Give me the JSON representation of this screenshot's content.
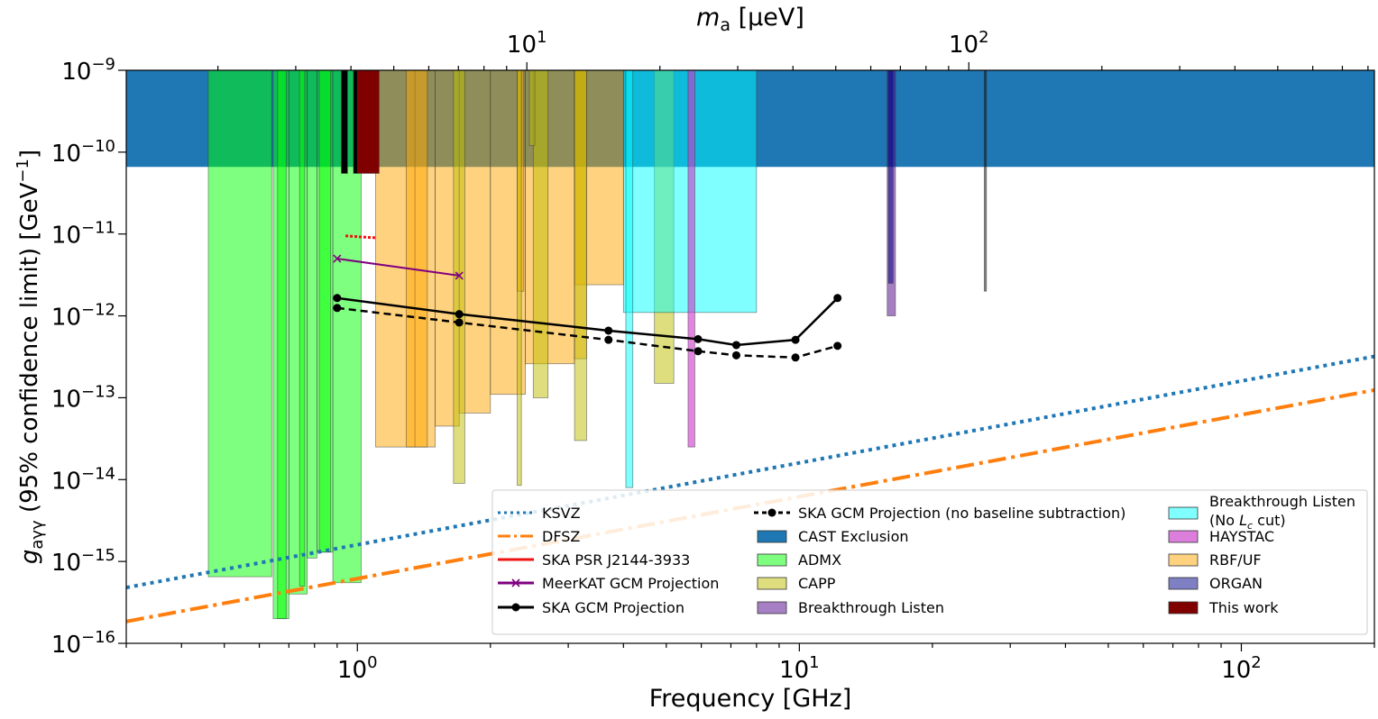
{
  "chart_data": {
    "type": "area",
    "xlabel": "Frequency [GHz]",
    "ylabel_main": "g",
    "ylabel_sub": "aγγ",
    "ylabel_rest": " (95% confidence limit) [GeV",
    "ylabel_exp": "−1",
    "ylabel_end": "]",
    "top_xlabel_base": "m",
    "top_xlabel_sub": "a",
    "top_xlabel_unit": " [μeV]",
    "xscale": "log",
    "yscale": "log",
    "xlim": [
      0.3,
      200
    ],
    "ylim": [
      1e-16,
      1e-09
    ],
    "x_ticks": [
      {
        "value": 1,
        "base": "10",
        "exp": "0"
      },
      {
        "value": 10,
        "base": "10",
        "exp": "1"
      },
      {
        "value": 100,
        "base": "10",
        "exp": "2"
      }
    ],
    "y_ticks": [
      {
        "value": 1e-09,
        "base": "10",
        "exp": "−9"
      },
      {
        "value": 1e-10,
        "base": "10",
        "exp": "−10"
      },
      {
        "value": 1e-11,
        "base": "10",
        "exp": "−11"
      },
      {
        "value": 1e-12,
        "base": "10",
        "exp": "−12"
      },
      {
        "value": 1e-13,
        "base": "10",
        "exp": "−13"
      },
      {
        "value": 1e-14,
        "base": "10",
        "exp": "−14"
      },
      {
        "value": 1e-15,
        "base": "10",
        "exp": "−15"
      },
      {
        "value": 1e-16,
        "base": "10",
        "exp": "−16"
      }
    ],
    "top_x_ticks": [
      {
        "value": 10,
        "base": "10",
        "exp": "1"
      },
      {
        "value": 100,
        "base": "10",
        "exp": "2"
      }
    ],
    "ueV_per_GHz": 4.1357,
    "lines": [
      {
        "name": "KSVZ",
        "x": [
          0.3,
          200
        ],
        "y": [
          4.8e-16,
          3.2e-13
        ],
        "color": "#1f77b4",
        "dash": "4,5",
        "width": 4
      },
      {
        "name": "DFSZ",
        "x": [
          0.3,
          200
        ],
        "y": [
          1.85e-16,
          1.24e-13
        ],
        "color": "#ff7f0e",
        "dash": "20,6,4,6",
        "width": 4
      },
      {
        "name": "SKA PSR J2144-3933",
        "x": [
          0.94,
          1.02,
          1.1
        ],
        "y": [
          9.5e-12,
          9.2e-12,
          9e-12
        ],
        "color": "#ee1111",
        "dash": "3,2",
        "width": 3
      },
      {
        "name": "MeerKAT GCM Projection",
        "x": [
          0.9,
          1.7
        ],
        "y": [
          5e-12,
          3.1e-12
        ],
        "color": "#800080",
        "marker": "x",
        "width": 2
      },
      {
        "name": "SKA GCM Projection",
        "x": [
          0.9,
          1.7,
          3.7,
          5.9,
          7.2,
          9.8,
          12.2
        ],
        "y": [
          1.65e-12,
          1.05e-12,
          6.6e-13,
          5.2e-13,
          4.4e-13,
          5.1e-13,
          1.65e-12
        ],
        "color": "#000000",
        "marker": "o",
        "width": 2.5
      },
      {
        "name": "SKA GCM Projection (no baseline subtraction)",
        "x": [
          0.9,
          1.7,
          3.7,
          5.9,
          7.2,
          9.8,
          12.2
        ],
        "y": [
          1.25e-12,
          8.3e-13,
          5.1e-13,
          3.7e-13,
          3.3e-13,
          3.1e-13,
          4.3e-13
        ],
        "color": "#000000",
        "marker": "o",
        "dash": "8,5",
        "width": 2.5
      }
    ],
    "regions": [
      {
        "name": "CAST Exclusion",
        "color": "#1f77b4",
        "opacity": 1,
        "x": [
          0.3,
          200
        ],
        "floor": 6.6e-11
      },
      {
        "name": "ADMX",
        "color": "#00ff00",
        "opacity": 0.5,
        "x": [
          0.46,
          0.64
        ],
        "floor": 6.5e-16
      },
      {
        "name": "ADMX",
        "color": "#00ff00",
        "opacity": 0.5,
        "x": [
          0.645,
          0.7
        ],
        "floor": 2e-16
      },
      {
        "name": "ADMX",
        "color": "#00ff00",
        "opacity": 0.5,
        "x": [
          0.7,
          0.77
        ],
        "floor": 4e-16
      },
      {
        "name": "ADMX",
        "color": "#00ff00",
        "opacity": 0.5,
        "x": [
          0.77,
          0.81
        ],
        "floor": 1.1e-15
      },
      {
        "name": "ADMX",
        "color": "#00ff00",
        "opacity": 0.5,
        "x": [
          0.81,
          0.88
        ],
        "floor": 1.3e-15
      },
      {
        "name": "ADMX",
        "color": "#00ff00",
        "opacity": 0.5,
        "x": [
          0.88,
          1.02
        ],
        "floor": 5.5e-16
      },
      {
        "name": "ADMX",
        "color": "#00ff00",
        "opacity": 0.5,
        "x": [
          0.66,
          0.69
        ],
        "floor": 2e-16
      },
      {
        "name": "ADMX",
        "color": "#00ff00",
        "opacity": 0.5,
        "x": [
          0.74,
          0.76
        ],
        "floor": 5e-16
      },
      {
        "name": "ADMX",
        "color": "#00ff00",
        "opacity": 0.5,
        "x": [
          0.82,
          0.87
        ],
        "floor": 1.3e-15
      },
      {
        "name": "RBF/UF",
        "color": "#ffa500",
        "opacity": 0.5,
        "x": [
          1.1,
          1.35
        ],
        "floor": 2.5e-14
      },
      {
        "name": "RBF/UF",
        "color": "#ffa500",
        "opacity": 0.5,
        "x": [
          1.35,
          1.5
        ],
        "floor": 2.5e-14
      },
      {
        "name": "RBF/UF",
        "color": "#ffa500",
        "opacity": 0.5,
        "x": [
          1.5,
          1.7
        ],
        "floor": 4.5e-14
      },
      {
        "name": "RBF/UF",
        "color": "#ffa500",
        "opacity": 0.5,
        "x": [
          1.7,
          2.0
        ],
        "floor": 6.5e-14
      },
      {
        "name": "RBF/UF",
        "color": "#ffa500",
        "opacity": 0.5,
        "x": [
          2.0,
          2.4
        ],
        "floor": 1.1e-13
      },
      {
        "name": "RBF/UF",
        "color": "#ffa500",
        "opacity": 0.5,
        "x": [
          2.4,
          3.1
        ],
        "floor": 2.6e-13
      },
      {
        "name": "RBF/UF",
        "color": "#ffa500",
        "opacity": 0.5,
        "x": [
          3.1,
          4.0
        ],
        "floor": 2.4e-12
      },
      {
        "name": "RBF/UF",
        "color": "#ffa500",
        "opacity": 0.5,
        "x": [
          1.29,
          1.44
        ],
        "floor": 2.5e-14
      },
      {
        "name": "RBF/UF",
        "color": "#ffa500",
        "opacity": 0.5,
        "x": [
          2.3,
          2.38
        ],
        "floor": 2e-12
      },
      {
        "name": "RBF/UF",
        "color": "#ffa500",
        "opacity": 0.5,
        "x": [
          3.1,
          3.3
        ],
        "floor": 3e-13
      },
      {
        "name": "CAPP",
        "color": "#bdbd00",
        "opacity": 0.5,
        "x": [
          1.65,
          1.75
        ],
        "floor": 9e-15
      },
      {
        "name": "CAPP",
        "color": "#bdbd00",
        "opacity": 0.5,
        "x": [
          2.3,
          2.35
        ],
        "floor": 8.5e-15
      },
      {
        "name": "CAPP",
        "color": "#bdbd00",
        "opacity": 0.5,
        "x": [
          2.5,
          2.7
        ],
        "floor": 1e-13
      },
      {
        "name": "CAPP",
        "color": "#bdbd00",
        "opacity": 0.5,
        "x": [
          2.45,
          2.52
        ],
        "floor": 1.2e-10
      },
      {
        "name": "CAPP",
        "color": "#bdbd00",
        "opacity": 0.5,
        "x": [
          3.1,
          3.3
        ],
        "floor": 3e-14
      },
      {
        "name": "CAPP",
        "color": "#bdbd00",
        "opacity": 0.5,
        "x": [
          4.7,
          5.2
        ],
        "floor": 1.5e-13
      },
      {
        "name": "Breakthrough Listen (No Lc cut)",
        "color": "#00ffff",
        "opacity": 0.5,
        "x": [
          4.0,
          8.0
        ],
        "floor": 1.1e-12
      },
      {
        "name": "Breakthrough Listen (No Lc cut)",
        "color": "#00ffff",
        "opacity": 0.5,
        "x": [
          4.05,
          4.2
        ],
        "floor": 8e-15
      },
      {
        "name": "HAYSTAC",
        "color": "#cc33cc",
        "opacity": 0.6,
        "x": [
          5.6,
          5.8
        ],
        "floor": 2.5e-14
      },
      {
        "name": "Breakthrough Listen",
        "color": "#4b0082",
        "opacity": 0.5,
        "x": [
          15.8,
          16.5
        ],
        "floor": 1e-12
      },
      {
        "name": "ORGAN",
        "color": "#00008b",
        "opacity": 0.5,
        "x": [
          15.9,
          16.3
        ],
        "floor": 2.5e-12
      },
      {
        "name": "This work",
        "color": "#800000",
        "opacity": 1,
        "x": [
          1.0,
          1.12
        ],
        "floor": 5.5e-11
      },
      {
        "name": "This work",
        "color": "#000000",
        "opacity": 1,
        "x": [
          0.92,
          0.95
        ],
        "floor": 5.5e-11
      },
      {
        "name": "This work",
        "color": "#000000",
        "opacity": 1,
        "x": [
          0.98,
          1.0
        ],
        "floor": 5.5e-11
      },
      {
        "name": "Breakthrough Listen",
        "color": "#000000",
        "opacity": 0.5,
        "x": [
          26.2,
          26.5
        ],
        "floor": 2e-12
      }
    ],
    "legend": {
      "placement": "lower-right",
      "columns": [
        [
          {
            "label": "KSVZ",
            "kind": "line",
            "color": "#1f77b4",
            "dash": "3,4"
          },
          {
            "label": "DFSZ",
            "kind": "line",
            "color": "#ff7f0e",
            "dash": "14,4,3,4"
          },
          {
            "label": "SKA PSR J2144-3933",
            "kind": "line",
            "color": "#ee1111"
          },
          {
            "label": "MeerKAT GCM Projection",
            "kind": "line-x",
            "color": "#800080"
          },
          {
            "label": "SKA GCM Projection",
            "kind": "line-o",
            "color": "#000000"
          }
        ],
        [
          {
            "label": "SKA GCM Projection (no baseline subtraction)",
            "kind": "line-o",
            "color": "#000000",
            "dash": "5,4"
          },
          {
            "label": "CAST Exclusion",
            "kind": "patch",
            "color": "#1f77b4"
          },
          {
            "label": "ADMX",
            "kind": "patch",
            "color": "#7fff7f"
          },
          {
            "label": "CAPP",
            "kind": "patch",
            "color": "#dede7f"
          },
          {
            "label": "Breakthrough Listen",
            "kind": "patch",
            "color": "#a67fc4"
          }
        ],
        [
          {
            "label": "Breakthrough Listen",
            "label2": "(No ",
            "label2_math": "L",
            "label2_sub": "c",
            "label2_end": " cut)",
            "kind": "patch",
            "color": "#7fffff"
          },
          {
            "label": "HAYSTAC",
            "kind": "patch",
            "color": "#dc7fdc"
          },
          {
            "label": "RBF/UF",
            "kind": "patch",
            "color": "#ffd27f"
          },
          {
            "label": "ORGAN",
            "kind": "patch",
            "color": "#7f7fc4"
          },
          {
            "label": "This work",
            "kind": "patch",
            "color": "#800000"
          }
        ]
      ]
    }
  }
}
